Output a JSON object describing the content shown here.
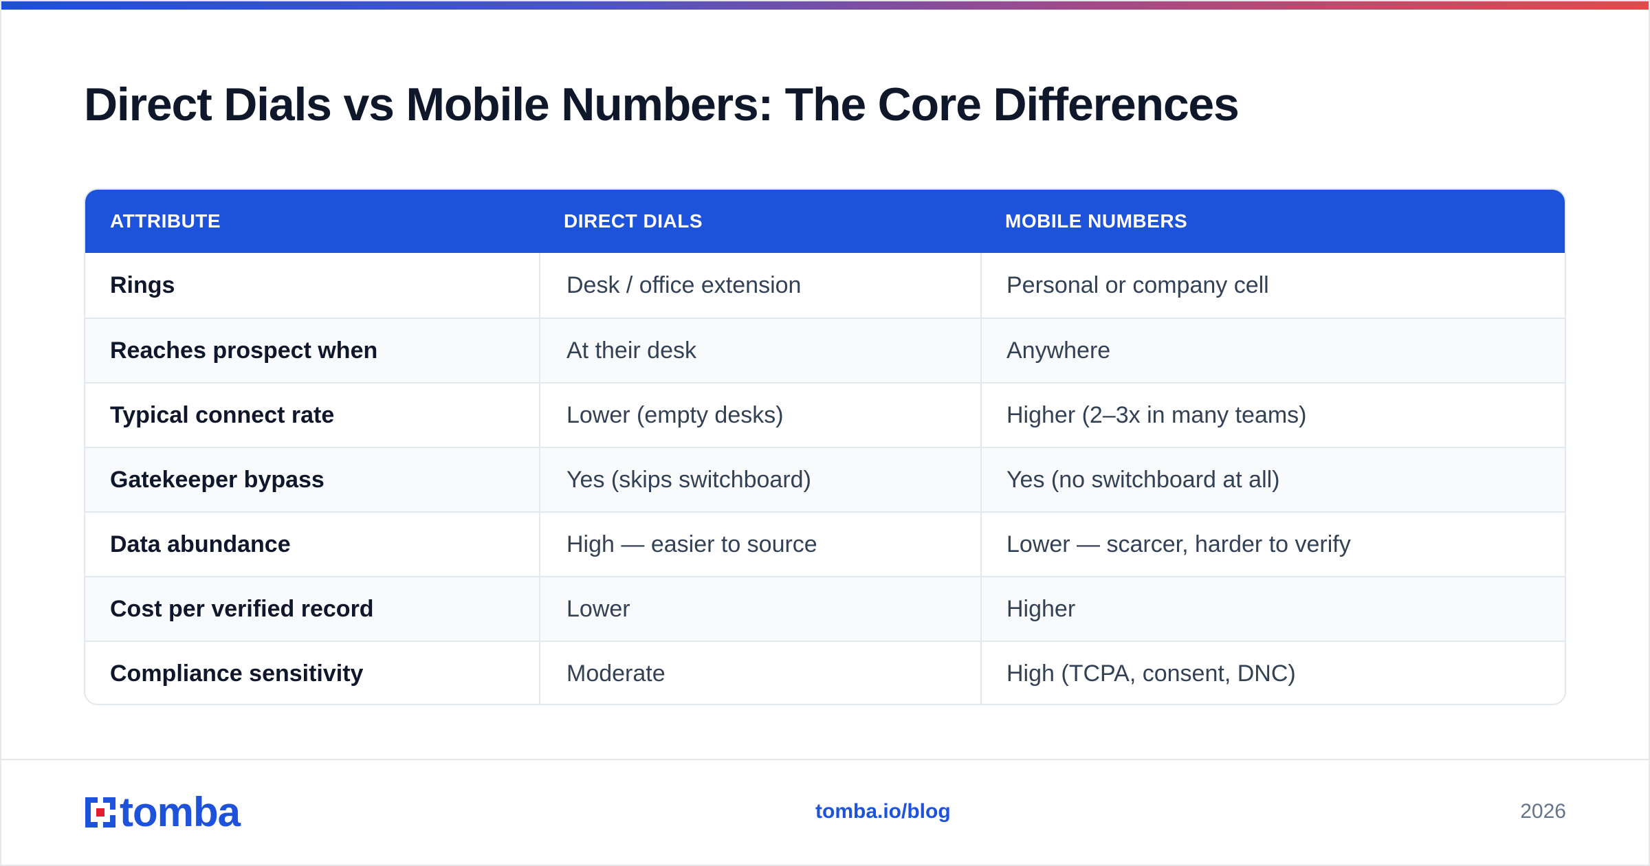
{
  "title": "Direct Dials vs Mobile Numbers: The Core Differences",
  "table": {
    "headers": [
      "ATTRIBUTE",
      "DIRECT DIALS",
      "MOBILE NUMBERS"
    ],
    "rows": [
      [
        "Rings",
        "Desk / office extension",
        "Personal or company cell"
      ],
      [
        "Reaches prospect when",
        "At their desk",
        "Anywhere"
      ],
      [
        "Typical connect rate",
        "Lower (empty desks)",
        "Higher (2–3x in many teams)"
      ],
      [
        "Gatekeeper bypass",
        "Yes (skips switchboard)",
        "Yes (no switchboard at all)"
      ],
      [
        "Data abundance",
        "High — easier to source",
        "Lower — scarcer, harder to verify"
      ],
      [
        "Cost per verified record",
        "Lower",
        "Higher"
      ],
      [
        "Compliance sensitivity",
        "Moderate",
        "High (TCPA, consent, DNC)"
      ]
    ]
  },
  "footer": {
    "logo_text": "tomba",
    "link": "tomba.io/blog",
    "year": "2026"
  },
  "colors": {
    "accent": "#1d52db",
    "logo_red": "#e11d2e",
    "title": "#0f172a",
    "body_text": "#334155",
    "row_alt": "#f8fafc"
  },
  "icons": {
    "logo_mark": "tomba-logo-icon"
  }
}
